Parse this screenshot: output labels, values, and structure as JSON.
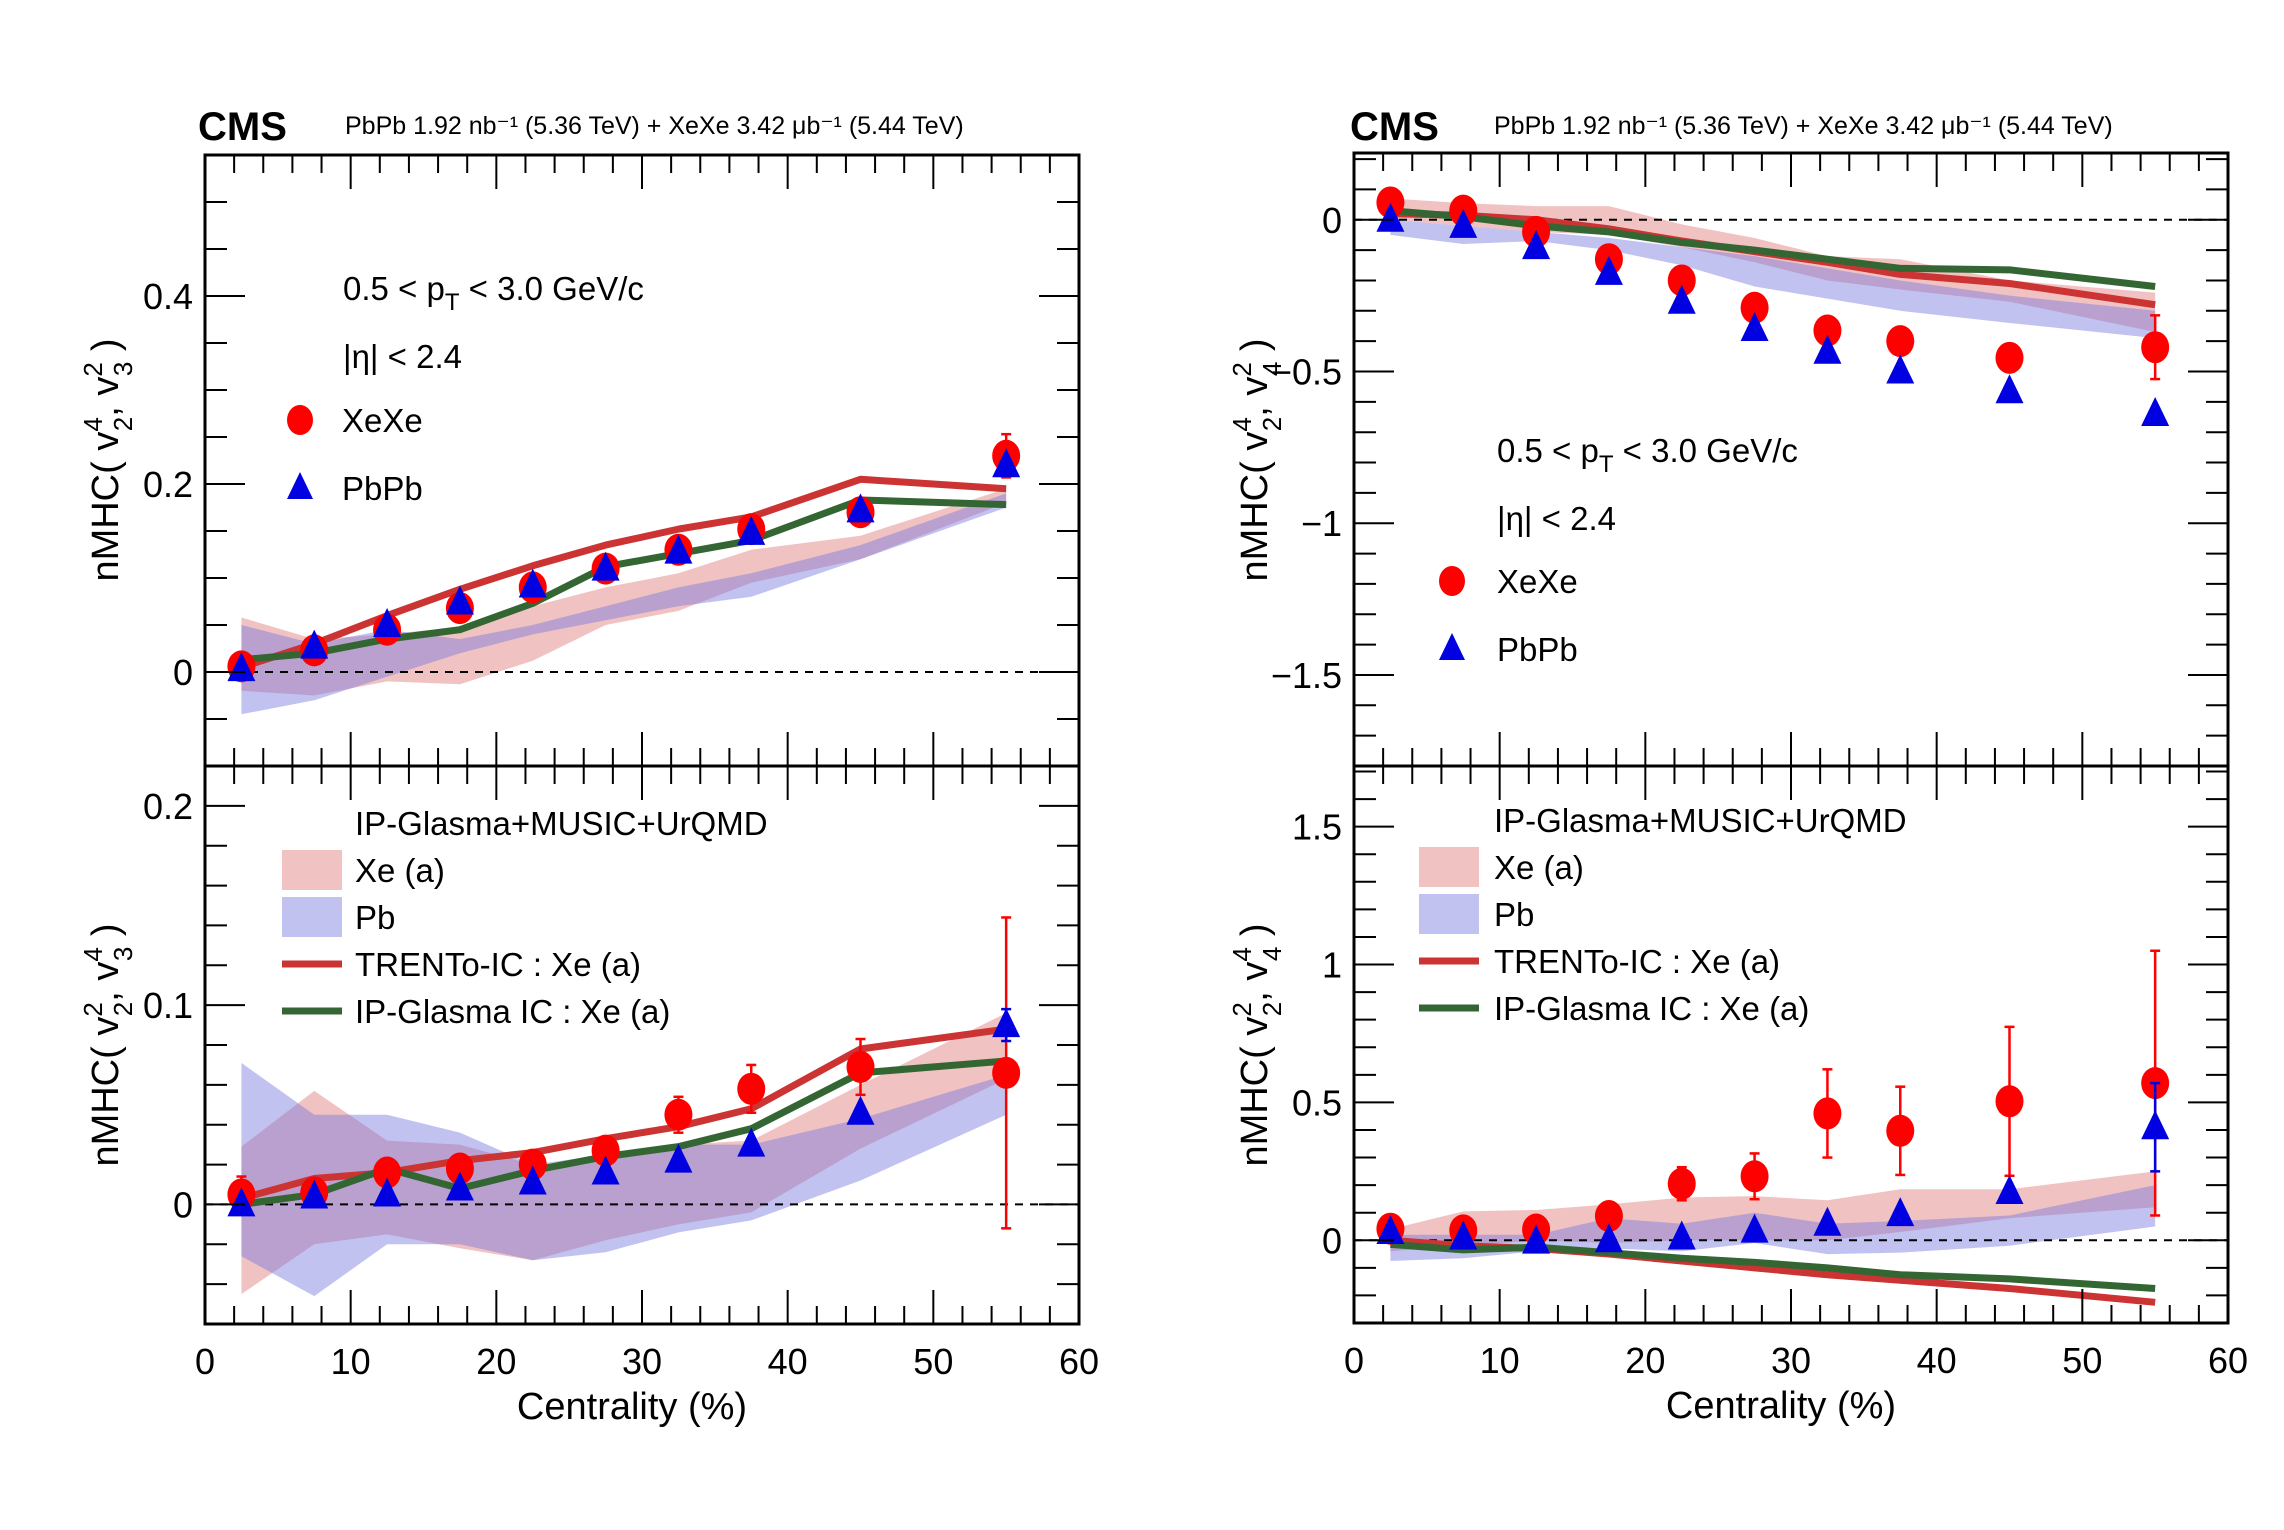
{
  "figure": {
    "panels": [
      {
        "id": "left",
        "cms_label": "CMS",
        "lumi_label": "PbPb 1.92 nb⁻¹ (5.36 TeV) + XeXe 3.42 μb⁻¹ (5.44 TeV)"
      },
      {
        "id": "right",
        "cms_label": "CMS",
        "lumi_label": "PbPb 1.92 nb⁻¹ (5.36 TeV) + XeXe 3.42 μb⁻¹ (5.44 TeV)"
      }
    ],
    "colors": {
      "xexe": "#ff0000",
      "pbpb": "#0000e0",
      "trento": "#cc3333",
      "ipglasma": "#336633",
      "band_xe": "rgba(222,120,120,0.45)",
      "band_pb": "rgba(120,120,225,0.45)",
      "frame": "#000000"
    }
  },
  "chart_data": [
    {
      "id": "top-left",
      "type": "scatter",
      "title": "",
      "xlabel": "",
      "ylabel": "nMHC( v₂⁴, v₃² )",
      "ylabel_parts": {
        "prefix": "nMHC( v",
        "sub1": "2",
        "sup1": "4",
        "mid": ", v",
        "sub2": "3",
        "sup2": "2",
        "suffix": " )"
      },
      "xlim": [
        0,
        60
      ],
      "ylim": [
        -0.1,
        0.55
      ],
      "yticks": [
        0,
        0.2,
        0.4
      ],
      "ytick_labels": [
        "0",
        "0.2",
        "0.4"
      ],
      "x_major": [
        0,
        10,
        20,
        30,
        40,
        50,
        60
      ],
      "y_minor_step": 0.05,
      "zero_line": true,
      "annotations": [
        "0.5 < p_T < 3.0 GeV/c",
        "|η| < 2.4"
      ],
      "annotation_parts": {
        "pt": {
          "a": "0.5 < p",
          "sub": "T",
          "b": " < 3.0 GeV/c"
        },
        "eta": "|η| < 2.4"
      },
      "legend": [
        {
          "label": "XeXe",
          "marker": "circle"
        },
        {
          "label": "PbPb",
          "marker": "triangle"
        }
      ],
      "legend_position": "upper-left",
      "x": [
        2.5,
        7.5,
        12.5,
        17.5,
        22.5,
        27.5,
        32.5,
        37.5,
        45,
        55
      ],
      "series": [
        {
          "name": "XeXe",
          "kind": "points",
          "marker": "circle",
          "values": [
            0.006,
            0.023,
            0.045,
            0.068,
            0.09,
            0.11,
            0.13,
            0.152,
            0.17,
            0.23
          ],
          "errors": [
            0.003,
            0.003,
            0.003,
            0.003,
            0.003,
            0.003,
            0.003,
            0.004,
            0.005,
            0.023
          ]
        },
        {
          "name": "PbPb",
          "kind": "points",
          "marker": "triangle",
          "values": [
            0.003,
            0.027,
            0.05,
            0.074,
            0.092,
            0.11,
            0.128,
            0.148,
            0.172,
            0.22
          ],
          "errors": [
            0.002,
            0.002,
            0.002,
            0.002,
            0.002,
            0.002,
            0.002,
            0.002,
            0.003,
            0.006
          ]
        },
        {
          "name": "Xe (a)",
          "kind": "band",
          "upper": [
            0.058,
            0.035,
            0.04,
            0.048,
            0.07,
            0.09,
            0.105,
            0.13,
            0.145,
            0.195
          ],
          "lower": [
            -0.02,
            -0.025,
            -0.01,
            -0.013,
            0.012,
            0.05,
            0.065,
            0.095,
            0.12,
            0.18
          ]
        },
        {
          "name": "Pb",
          "kind": "band",
          "upper": [
            0.05,
            0.03,
            0.045,
            0.035,
            0.05,
            0.07,
            0.09,
            0.105,
            0.135,
            0.19
          ],
          "lower": [
            -0.045,
            -0.03,
            -0.005,
            0.02,
            0.04,
            0.055,
            0.07,
            0.08,
            0.12,
            0.175
          ]
        },
        {
          "name": "TRENTo-IC : Xe (a)",
          "kind": "line",
          "values": [
            0.005,
            0.03,
            0.06,
            0.088,
            0.113,
            0.135,
            0.152,
            0.165,
            0.205,
            0.195
          ]
        },
        {
          "name": "IP-Glasma IC : Xe (a)",
          "kind": "line",
          "values": [
            0.013,
            0.02,
            0.035,
            0.045,
            0.073,
            0.112,
            0.126,
            0.14,
            0.183,
            0.178
          ]
        }
      ]
    },
    {
      "id": "bottom-left",
      "type": "scatter",
      "title": "",
      "xlabel": "Centrality (%)",
      "ylabel": "nMHC( v₂², v₃⁴ )",
      "ylabel_parts": {
        "prefix": "nMHC( v",
        "sub1": "2",
        "sup1": "2",
        "mid": ", v",
        "sub2": "3",
        "sup2": "4",
        "suffix": " )"
      },
      "xlim": [
        0,
        60
      ],
      "ylim": [
        -0.06,
        0.22
      ],
      "yticks": [
        0,
        0.1,
        0.2
      ],
      "ytick_labels": [
        "0",
        "0.1",
        "0.2"
      ],
      "x_major": [
        0,
        10,
        20,
        30,
        40,
        50,
        60
      ],
      "xtick_labels": [
        "0",
        "10",
        "20",
        "30",
        "40",
        "50",
        "60"
      ],
      "y_minor_step": 0.02,
      "zero_line": true,
      "legend_header": "IP-Glasma+MUSIC+UrQMD",
      "legend": [
        {
          "label": "Xe (a)",
          "marker": "band-xe"
        },
        {
          "label": "Pb",
          "marker": "band-pb"
        },
        {
          "label": "TRENTo-IC : Xe (a)",
          "marker": "line-trento"
        },
        {
          "label": "IP-Glasma IC : Xe (a)",
          "marker": "line-ipglasma"
        }
      ],
      "legend_position": "upper-left",
      "x": [
        2.5,
        7.5,
        12.5,
        17.5,
        22.5,
        27.5,
        32.5,
        37.5,
        45,
        55
      ],
      "series": [
        {
          "name": "XeXe",
          "kind": "points",
          "marker": "circle",
          "values": [
            0.005,
            0.006,
            0.016,
            0.018,
            0.02,
            0.027,
            0.045,
            0.058,
            0.069,
            0.066
          ],
          "errors": [
            0.009,
            0.003,
            0.004,
            0.003,
            0.002,
            0.006,
            0.009,
            0.012,
            0.014,
            0.078
          ]
        },
        {
          "name": "PbPb",
          "kind": "points",
          "marker": "triangle",
          "values": [
            0.0,
            0.004,
            0.005,
            0.008,
            0.011,
            0.016,
            0.022,
            0.03,
            0.046,
            0.09
          ],
          "errors": [
            0.001,
            0.001,
            0.001,
            0.001,
            0.001,
            0.001,
            0.001,
            0.002,
            0.002,
            0.008
          ]
        },
        {
          "name": "Xe (a)",
          "kind": "band",
          "upper": [
            0.029,
            0.057,
            0.032,
            0.03,
            0.02,
            0.022,
            0.03,
            0.032,
            0.06,
            0.096
          ],
          "lower": [
            -0.045,
            -0.02,
            -0.015,
            -0.022,
            -0.028,
            -0.018,
            -0.01,
            -0.004,
            0.028,
            0.063
          ]
        },
        {
          "name": "Pb",
          "kind": "band",
          "upper": [
            0.071,
            0.045,
            0.045,
            0.036,
            0.02,
            0.025,
            0.03,
            0.03,
            0.043,
            0.065
          ],
          "lower": [
            -0.026,
            -0.046,
            -0.02,
            -0.02,
            -0.028,
            -0.024,
            -0.014,
            -0.008,
            0.012,
            0.045
          ]
        },
        {
          "name": "TRENTo-IC : Xe (a)",
          "kind": "line",
          "values": [
            0.003,
            0.013,
            0.016,
            0.022,
            0.026,
            0.033,
            0.039,
            0.048,
            0.078,
            0.088
          ]
        },
        {
          "name": "IP-Glasma IC : Xe (a)",
          "kind": "line",
          "values": [
            0.0,
            0.005,
            0.018,
            0.008,
            0.017,
            0.024,
            0.029,
            0.038,
            0.066,
            0.072
          ]
        }
      ]
    },
    {
      "id": "top-right",
      "type": "scatter",
      "title": "",
      "xlabel": "",
      "ylabel": "nMHC( v₂⁴, v₄² )",
      "ylabel_parts": {
        "prefix": "nMHC( v",
        "sub1": "2",
        "sup1": "4",
        "mid": ", v",
        "sub2": "4",
        "sup2": "2",
        "suffix": " )"
      },
      "xlim": [
        0,
        60
      ],
      "ylim": [
        -1.8,
        0.22
      ],
      "yticks": [
        0,
        -0.5,
        -1,
        -1.5
      ],
      "ytick_labels": [
        "0",
        "−0.5",
        "−1",
        "−1.5"
      ],
      "x_major": [
        0,
        10,
        20,
        30,
        40,
        50,
        60
      ],
      "y_minor_step": 0.1,
      "zero_line": true,
      "annotations": [
        "0.5 < p_T < 3.0 GeV/c",
        "|η| < 2.4"
      ],
      "annotation_parts": {
        "pt": {
          "a": "0.5 < p",
          "sub": "T",
          "b": " < 3.0 GeV/c"
        },
        "eta": "|η| < 2.4"
      },
      "legend": [
        {
          "label": "XeXe",
          "marker": "circle"
        },
        {
          "label": "PbPb",
          "marker": "triangle"
        }
      ],
      "legend_position": "center-left",
      "x": [
        2.5,
        7.5,
        12.5,
        17.5,
        22.5,
        27.5,
        32.5,
        37.5,
        45,
        55
      ],
      "series": [
        {
          "name": "XeXe",
          "kind": "points",
          "marker": "circle",
          "values": [
            0.057,
            0.03,
            -0.04,
            -0.13,
            -0.2,
            -0.29,
            -0.365,
            -0.4,
            -0.455,
            -0.42
          ],
          "errors": [
            0.01,
            0.01,
            0.01,
            0.01,
            0.01,
            0.01,
            0.01,
            0.01,
            0.02,
            0.105
          ]
        },
        {
          "name": "PbPb",
          "kind": "points",
          "marker": "triangle",
          "values": [
            0.0,
            -0.02,
            -0.09,
            -0.175,
            -0.27,
            -0.36,
            -0.435,
            -0.5,
            -0.565,
            -0.64
          ],
          "errors": [
            0.005,
            0.005,
            0.005,
            0.005,
            0.005,
            0.005,
            0.005,
            0.005,
            0.005,
            0.01
          ]
        },
        {
          "name": "Xe (a)",
          "kind": "band",
          "upper": [
            0.07,
            0.055,
            0.045,
            0.045,
            -0.015,
            -0.06,
            -0.12,
            -0.13,
            -0.2,
            -0.24
          ],
          "lower": [
            0.0,
            -0.02,
            -0.04,
            -0.05,
            -0.09,
            -0.14,
            -0.2,
            -0.23,
            -0.27,
            -0.37
          ]
        },
        {
          "name": "Pb",
          "kind": "band",
          "upper": [
            0.0,
            -0.02,
            -0.04,
            -0.06,
            -0.09,
            -0.12,
            -0.16,
            -0.2,
            -0.25,
            -0.3
          ],
          "lower": [
            -0.05,
            -0.08,
            -0.07,
            -0.1,
            -0.15,
            -0.22,
            -0.26,
            -0.3,
            -0.34,
            -0.39
          ]
        },
        {
          "name": "TRENTo-IC : Xe (a)",
          "kind": "line",
          "values": [
            0.02,
            0.015,
            0.0,
            -0.03,
            -0.07,
            -0.105,
            -0.14,
            -0.18,
            -0.21,
            -0.28
          ]
        },
        {
          "name": "IP-Glasma IC : Xe (a)",
          "kind": "line",
          "values": [
            0.03,
            0.01,
            -0.02,
            -0.04,
            -0.075,
            -0.1,
            -0.13,
            -0.16,
            -0.165,
            -0.22
          ]
        }
      ]
    },
    {
      "id": "bottom-right",
      "type": "scatter",
      "title": "",
      "xlabel": "Centrality (%)",
      "ylabel": "nMHC( v₂², v₄⁴ )",
      "ylabel_parts": {
        "prefix": "nMHC( v",
        "sub1": "2",
        "sup1": "2",
        "mid": ", v",
        "sub2": "4",
        "sup2": "4",
        "suffix": " )"
      },
      "xlim": [
        0,
        60
      ],
      "ylim": [
        -0.3,
        1.72
      ],
      "yticks": [
        0,
        0.5,
        1,
        1.5
      ],
      "ytick_labels": [
        "0",
        "0.5",
        "1",
        "1.5"
      ],
      "x_major": [
        0,
        10,
        20,
        30,
        40,
        50,
        60
      ],
      "xtick_labels": [
        "0",
        "10",
        "20",
        "30",
        "40",
        "50",
        "60"
      ],
      "y_minor_step": 0.1,
      "zero_line": true,
      "legend_header": "IP-Glasma+MUSIC+UrQMD",
      "legend": [
        {
          "label": "Xe (a)",
          "marker": "band-xe"
        },
        {
          "label": "Pb",
          "marker": "band-pb"
        },
        {
          "label": "TRENTo-IC : Xe (a)",
          "marker": "line-trento"
        },
        {
          "label": "IP-Glasma IC : Xe (a)",
          "marker": "line-ipglasma"
        }
      ],
      "legend_position": "upper-left",
      "x": [
        2.5,
        7.5,
        12.5,
        17.5,
        22.5,
        27.5,
        32.5,
        37.5,
        45,
        55
      ],
      "series": [
        {
          "name": "XeXe",
          "kind": "points",
          "marker": "circle",
          "values": [
            0.042,
            0.036,
            0.039,
            0.088,
            0.205,
            0.232,
            0.46,
            0.397,
            0.504,
            0.57
          ],
          "errors": [
            0.01,
            0.01,
            0.01,
            0.043,
            0.06,
            0.083,
            0.16,
            0.16,
            0.27,
            0.48
          ]
        },
        {
          "name": "PbPb",
          "kind": "points",
          "marker": "triangle",
          "values": [
            0.03,
            0.01,
            -0.005,
            0.0,
            0.01,
            0.035,
            0.06,
            0.095,
            0.175,
            0.41
          ],
          "errors": [
            0.005,
            0.005,
            0.005,
            0.005,
            0.005,
            0.005,
            0.005,
            0.005,
            0.01,
            0.16
          ]
        },
        {
          "name": "Xe (a)",
          "kind": "band",
          "upper": [
            0.04,
            0.105,
            0.11,
            0.13,
            0.155,
            0.16,
            0.145,
            0.185,
            0.185,
            0.25
          ],
          "lower": [
            -0.04,
            -0.02,
            0.0,
            -0.01,
            0.0,
            0.0,
            0.0,
            0.03,
            0.08,
            0.12
          ]
        },
        {
          "name": "Pb",
          "kind": "band",
          "upper": [
            0.02,
            0.02,
            0.02,
            0.08,
            0.06,
            0.1,
            0.06,
            0.07,
            0.09,
            0.2
          ],
          "lower": [
            -0.075,
            -0.065,
            -0.04,
            -0.03,
            -0.04,
            -0.01,
            -0.05,
            -0.045,
            -0.02,
            0.05
          ]
        },
        {
          "name": "TRENTo-IC : Xe (a)",
          "kind": "line",
          "values": [
            0.0,
            -0.02,
            -0.03,
            -0.05,
            -0.075,
            -0.1,
            -0.125,
            -0.145,
            -0.175,
            -0.225
          ]
        },
        {
          "name": "IP-Glasma IC : Xe (a)",
          "kind": "line",
          "values": [
            -0.015,
            -0.035,
            -0.025,
            -0.045,
            -0.065,
            -0.08,
            -0.1,
            -0.125,
            -0.14,
            -0.175
          ]
        }
      ]
    }
  ]
}
